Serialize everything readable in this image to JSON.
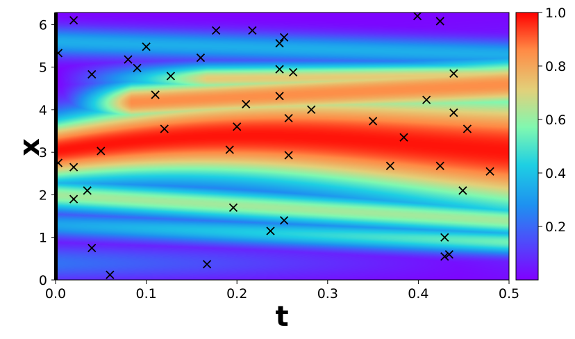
{
  "chart_data": {
    "type": "heatmap",
    "xlabel": "t",
    "ylabel": "x",
    "xlim": [
      0.0,
      0.5
    ],
    "ylim": [
      0.0,
      6.283
    ],
    "x_ticks": [
      "0.0",
      "0.1",
      "0.2",
      "0.3",
      "0.4",
      "0.5"
    ],
    "y_ticks": [
      "0",
      "1",
      "2",
      "3",
      "4",
      "5",
      "6"
    ],
    "colormap": "rainbow",
    "colorbar": {
      "range": [
        0.0,
        1.0
      ],
      "ticks": [
        "0.2",
        "0.4",
        "0.6",
        "0.8",
        "1.0"
      ],
      "placement": "right"
    },
    "boundary_marker": {
      "t": 0.0,
      "color": "#000000"
    },
    "marker_style": {
      "shape": "x",
      "color": "#000000"
    },
    "points": [
      {
        "t": 0.003,
        "x": 5.33
      },
      {
        "t": 0.02,
        "x": 6.1
      },
      {
        "t": 0.003,
        "x": 2.75
      },
      {
        "t": 0.02,
        "x": 2.65
      },
      {
        "t": 0.02,
        "x": 1.9
      },
      {
        "t": 0.035,
        "x": 2.1
      },
      {
        "t": 0.04,
        "x": 4.83
      },
      {
        "t": 0.04,
        "x": 0.75
      },
      {
        "t": 0.05,
        "x": 3.03
      },
      {
        "t": 0.06,
        "x": 0.12
      },
      {
        "t": 0.08,
        "x": 5.18
      },
      {
        "t": 0.09,
        "x": 4.98
      },
      {
        "t": 0.1,
        "x": 5.48
      },
      {
        "t": 0.11,
        "x": 4.35
      },
      {
        "t": 0.12,
        "x": 3.55
      },
      {
        "t": 0.127,
        "x": 4.79
      },
      {
        "t": 0.16,
        "x": 5.22
      },
      {
        "t": 0.167,
        "x": 0.37
      },
      {
        "t": 0.177,
        "x": 5.86
      },
      {
        "t": 0.192,
        "x": 3.06
      },
      {
        "t": 0.196,
        "x": 1.7
      },
      {
        "t": 0.2,
        "x": 3.6
      },
      {
        "t": 0.21,
        "x": 4.13
      },
      {
        "t": 0.217,
        "x": 5.86
      },
      {
        "t": 0.237,
        "x": 1.15
      },
      {
        "t": 0.247,
        "x": 5.56
      },
      {
        "t": 0.247,
        "x": 4.95
      },
      {
        "t": 0.247,
        "x": 4.32
      },
      {
        "t": 0.252,
        "x": 5.7
      },
      {
        "t": 0.252,
        "x": 1.4
      },
      {
        "t": 0.257,
        "x": 3.8
      },
      {
        "t": 0.257,
        "x": 2.93
      },
      {
        "t": 0.262,
        "x": 4.88
      },
      {
        "t": 0.282,
        "x": 4.0
      },
      {
        "t": 0.35,
        "x": 3.73
      },
      {
        "t": 0.369,
        "x": 2.68
      },
      {
        "t": 0.384,
        "x": 3.35
      },
      {
        "t": 0.399,
        "x": 6.2
      },
      {
        "t": 0.409,
        "x": 4.23
      },
      {
        "t": 0.424,
        "x": 6.08
      },
      {
        "t": 0.424,
        "x": 2.68
      },
      {
        "t": 0.429,
        "x": 1.0
      },
      {
        "t": 0.429,
        "x": 0.55
      },
      {
        "t": 0.434,
        "x": 0.6
      },
      {
        "t": 0.439,
        "x": 4.85
      },
      {
        "t": 0.439,
        "x": 3.93
      },
      {
        "t": 0.449,
        "x": 2.1
      },
      {
        "t": 0.454,
        "x": 3.55
      },
      {
        "t": 0.479,
        "x": 2.55
      }
    ]
  }
}
